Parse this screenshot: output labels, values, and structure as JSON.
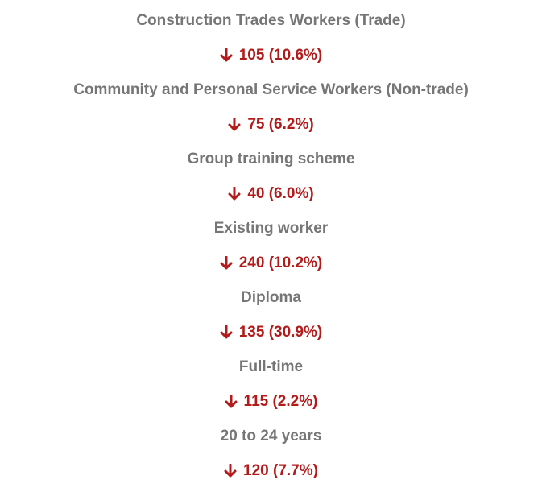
{
  "items": [
    {
      "label": "Construction Trades Workers (Trade)",
      "change": "105 (10.6%)"
    },
    {
      "label": "Community and Personal Service Workers (Non-trade)",
      "change": "75 (6.2%)"
    },
    {
      "label": "Group training scheme",
      "change": "40 (6.0%)"
    },
    {
      "label": "Existing worker",
      "change": "240 (10.2%)"
    },
    {
      "label": "Diploma",
      "change": "135 (30.9%)"
    },
    {
      "label": "Full-time",
      "change": "115 (2.2%)"
    },
    {
      "label": "20 to 24 years",
      "change": "120 (7.7%)"
    }
  ]
}
